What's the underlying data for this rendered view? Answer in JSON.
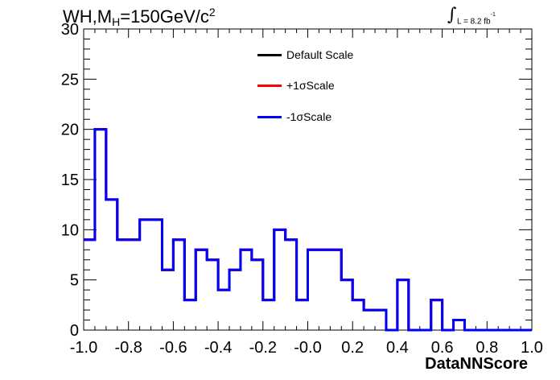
{
  "chart_data": {
    "type": "line",
    "title_parts": {
      "pre": "WH,M",
      "sub": "H",
      "mid": "=150GeV/c",
      "sup": "2"
    },
    "lumi": {
      "integral": "∫",
      "text": "L = 8.2 fb",
      "sup": "-1"
    },
    "xlabel": "DataNNScore",
    "ylabel": "",
    "xlim": [
      -1.0,
      1.0
    ],
    "ylim": [
      0,
      30
    ],
    "x_ticks": [
      "-1.0",
      "-0.8",
      "-0.6",
      "-0.4",
      "-0.2",
      "-0.0",
      "0.2",
      "0.4",
      "0.6",
      "0.8",
      "1.0"
    ],
    "y_ticks": [
      "0",
      "5",
      "10",
      "15",
      "20",
      "25",
      "30"
    ],
    "bin_edges_start": -1.0,
    "bin_width": 0.05,
    "series": [
      {
        "name": "Default Scale",
        "color": "#000000",
        "values": [
          9,
          20,
          13,
          9,
          9,
          11,
          11,
          6,
          9,
          3,
          8,
          7,
          4,
          6,
          8,
          7,
          3,
          10,
          9,
          3,
          8,
          8,
          8,
          5,
          3,
          2,
          2,
          0,
          5,
          0,
          0,
          3,
          0,
          1,
          0,
          0,
          0,
          0,
          0,
          0
        ]
      },
      {
        "name": "+1σScale",
        "color": "#ff0000",
        "values": [
          9,
          20,
          13,
          9,
          9,
          11,
          11,
          6,
          9,
          3,
          8,
          7,
          4,
          6,
          8,
          7,
          3,
          10,
          9,
          3,
          8,
          8,
          8,
          5,
          3,
          2,
          2,
          0,
          5,
          0,
          0,
          3,
          0,
          1,
          0,
          0,
          0,
          0,
          0,
          0
        ]
      },
      {
        "name": "-1σScale",
        "color": "#0000ff",
        "values": [
          9,
          20,
          13,
          9,
          9,
          11,
          11,
          6,
          9,
          3,
          8,
          7,
          4,
          6,
          8,
          7,
          3,
          10,
          9,
          3,
          8,
          8,
          8,
          5,
          3,
          2,
          2,
          0,
          5,
          0,
          0,
          3,
          0,
          1,
          0,
          0,
          0,
          0,
          0,
          0
        ]
      }
    ],
    "legend": {
      "placement": "top-center"
    }
  }
}
